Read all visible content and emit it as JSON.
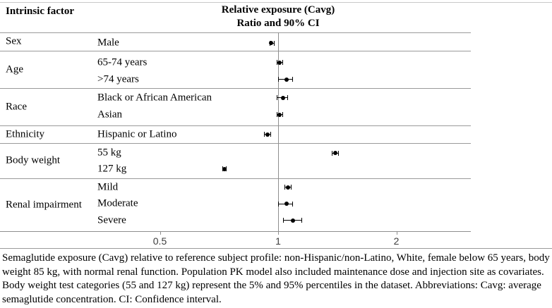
{
  "header": {
    "factor_column": "Intrinsic factor",
    "title_line1": "Relative exposure (Cavg)",
    "title_line2": "Ratio and 90% CI"
  },
  "chart_data": {
    "type": "forest",
    "x_scale": "log",
    "x_ticks": [
      0.5,
      1,
      2
    ],
    "x_range": [
      0.35,
      3.1
    ],
    "reference_value": 1,
    "title": "Relative exposure (Cavg) Ratio and 90% CI",
    "groups": [
      {
        "factor": "Sex",
        "subgroups": [
          {
            "label": "Male",
            "ratio": 0.96,
            "ci_low": 0.95,
            "ci_high": 0.98
          }
        ]
      },
      {
        "factor": "Age",
        "subgroups": [
          {
            "label": "65-74 years",
            "ratio": 1.01,
            "ci_low": 0.99,
            "ci_high": 1.03
          },
          {
            "label": ">74 years",
            "ratio": 1.05,
            "ci_low": 1.0,
            "ci_high": 1.09
          }
        ]
      },
      {
        "factor": "Race",
        "subgroups": [
          {
            "label": "Black or African American",
            "ratio": 1.03,
            "ci_low": 0.99,
            "ci_high": 1.06
          },
          {
            "label": "Asian",
            "ratio": 1.01,
            "ci_low": 0.99,
            "ci_high": 1.03
          }
        ]
      },
      {
        "factor": "Ethnicity",
        "subgroups": [
          {
            "label": "Hispanic or Latino",
            "ratio": 0.94,
            "ci_low": 0.92,
            "ci_high": 0.96
          }
        ]
      },
      {
        "factor": "Body weight",
        "subgroups": [
          {
            "label": "55 kg",
            "ratio": 1.4,
            "ci_low": 1.37,
            "ci_high": 1.43
          },
          {
            "label": "127 kg",
            "ratio": 0.73,
            "ci_low": 0.72,
            "ci_high": 0.74
          }
        ]
      },
      {
        "factor": "Renal impairment",
        "subgroups": [
          {
            "label": "Mild",
            "ratio": 1.06,
            "ci_low": 1.04,
            "ci_high": 1.08
          },
          {
            "label": "Moderate",
            "ratio": 1.05,
            "ci_low": 1.0,
            "ci_high": 1.09
          },
          {
            "label": "Severe",
            "ratio": 1.09,
            "ci_low": 1.03,
            "ci_high": 1.15
          }
        ]
      }
    ]
  },
  "footnote": "Semaglutide exposure (Cavg) relative to reference subject profile: non-Hispanic/non-Latino, White, female below 65 years, body weight 85 kg, with normal renal function. Population PK model also included maintenance dose and injection site as covariates. Body weight test categories (55 and 127 kg) represent the 5% and 95% percentiles in the dataset. Abbreviations: Cavg: average semaglutide concentration. CI: Confidence interval.",
  "colors": {
    "marker": "#000000",
    "separator_line": "#9a9a9a",
    "axis_line": "#8f8f8f",
    "top_border": "#c9c9c9",
    "text": "#000000"
  }
}
